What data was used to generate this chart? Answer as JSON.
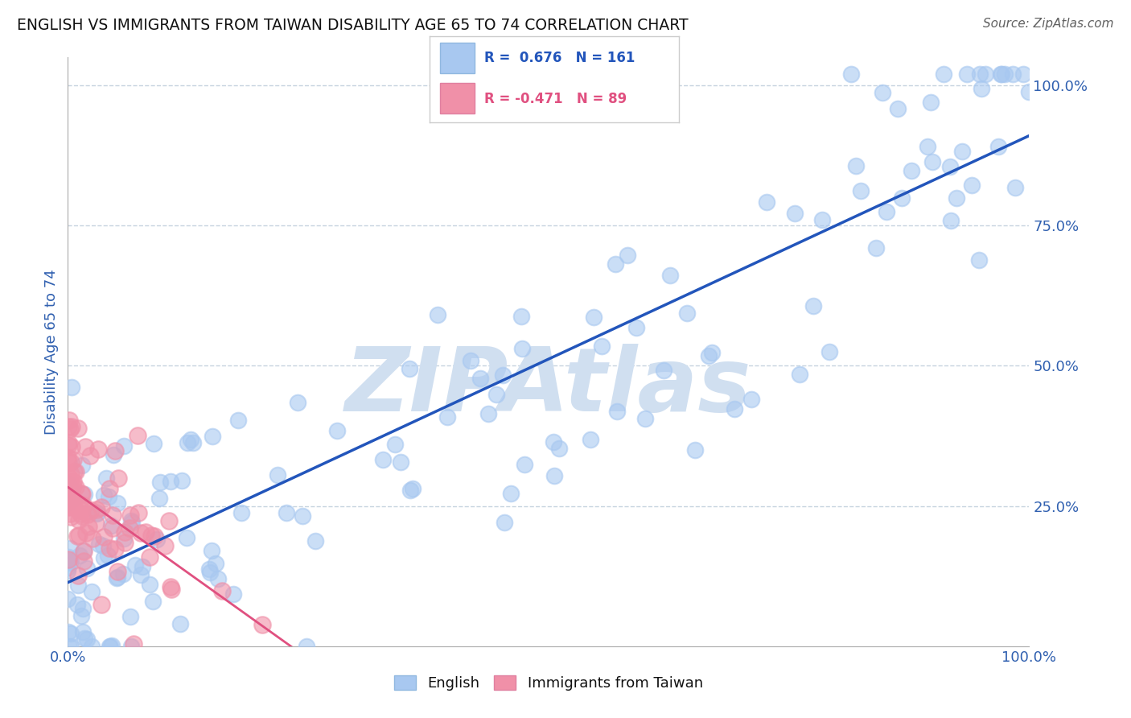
{
  "title": "ENGLISH VS IMMIGRANTS FROM TAIWAN DISABILITY AGE 65 TO 74 CORRELATION CHART",
  "source_text": "Source: ZipAtlas.com",
  "ylabel": "Disability Age 65 to 74",
  "xlim": [
    0.0,
    1.0
  ],
  "ylim": [
    0.0,
    1.05
  ],
  "xtick_labels": [
    "0.0%",
    "100.0%"
  ],
  "ytick_labels": [
    "25.0%",
    "50.0%",
    "75.0%",
    "100.0%"
  ],
  "ytick_positions": [
    0.25,
    0.5,
    0.75,
    1.0
  ],
  "english_color": "#a8c8f0",
  "taiwan_color": "#f090a8",
  "english_R": 0.676,
  "english_N": 161,
  "taiwan_R": -0.471,
  "taiwan_N": 89,
  "english_line_color": "#2255bb",
  "taiwan_line_color": "#e05080",
  "watermark_text": "ZIPAtlas",
  "watermark_color": "#d0dff0",
  "legend_label_english": "English",
  "legend_label_taiwan": "Immigrants from Taiwan",
  "background_color": "#ffffff",
  "grid_color": "#b8c8d8",
  "title_color": "#111111",
  "tick_label_color": "#3060b0",
  "source_color": "#606060"
}
